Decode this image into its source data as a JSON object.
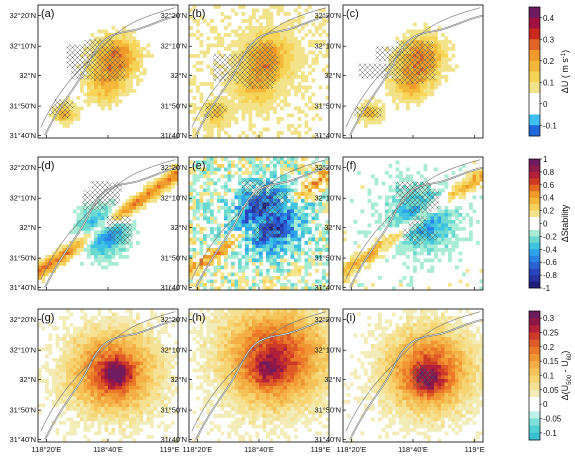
{
  "chart_data": {
    "type": "heatmap",
    "layout": "3x3 map panels with one colorbar per row",
    "x_ticks": [
      "118°20'E",
      "118°40'E",
      "119°E"
    ],
    "y_ticks": [
      "32°20'N",
      "32°10'N",
      "32°N",
      "31°50'N",
      "31°40'N"
    ],
    "rows": [
      {
        "panels": [
          "(a)",
          "(b)",
          "(c)"
        ],
        "colorbar": {
          "title_main": "ΔU",
          "title_unit": "( m s",
          "title_sup": "-1",
          "title_close": ")",
          "ticks": [
            "0.4",
            "0.3",
            "0.2",
            "0.1",
            "0",
            "-0.1"
          ],
          "levels": [
            0.45,
            0.4,
            0.35,
            0.3,
            0.25,
            0.2,
            0.15,
            0.1,
            0.05,
            0.0,
            -0.05,
            -0.1,
            -0.15
          ],
          "colors": [
            "#6d1b5e",
            "#a01040",
            "#c8281e",
            "#e06428",
            "#ef9a2a",
            "#f3b83a",
            "#f5d458",
            "#f2e38a",
            "#ffffff",
            "#ffffff",
            "#40c0f0",
            "#1f66d9",
            "#1a2c9f"
          ]
        }
      },
      {
        "panels": [
          "(d)",
          "(e)",
          "(f)"
        ],
        "colorbar": {
          "title_main": "ΔStability",
          "ticks": [
            "1",
            "0.8",
            "0.6",
            "0.4",
            "0.2",
            "0",
            "-0.2",
            "-0.4",
            "-0.6",
            "-0.8",
            "-1"
          ],
          "levels": [
            1.0,
            0.9,
            0.8,
            0.7,
            0.6,
            0.5,
            0.4,
            0.3,
            0.2,
            0.1,
            0.0,
            -0.1,
            -0.2,
            -0.3,
            -0.4,
            -0.5,
            -0.6,
            -0.7,
            -0.8,
            -0.9,
            -1.0
          ],
          "colors": [
            "#6d1b5e",
            "#8c1c4a",
            "#b3203a",
            "#cf3c26",
            "#e46a24",
            "#ef9a2a",
            "#f3b83a",
            "#f6d25a",
            "#f4e48e",
            "#ffffff",
            "#ffffff",
            "#a9ecd6",
            "#6bd9cf",
            "#3fc3e0",
            "#2ea4ea",
            "#2a82e2",
            "#2b62d4",
            "#2a44bf",
            "#26309f",
            "#1b1e78"
          ]
        }
      },
      {
        "panels": [
          "(g)",
          "(h)",
          "(i)"
        ],
        "colorbar": {
          "title_main": "Δ(U",
          "title_sub1": "500",
          "title_mid": " - U",
          "title_sub2": "60",
          "title_close": ")",
          "ticks": [
            "0.3",
            "0.25",
            "0.2",
            "0.15",
            "0.1",
            "0.05",
            "0",
            "-0.05",
            "-0.1"
          ],
          "levels": [
            0.325,
            0.3,
            0.275,
            0.25,
            0.225,
            0.2,
            0.175,
            0.15,
            0.125,
            0.1,
            0.075,
            0.05,
            0.025,
            0.0,
            -0.025,
            -0.05,
            -0.075,
            -0.1,
            -0.125
          ],
          "colors": [
            "#6d1b5e",
            "#8e1848",
            "#b3203a",
            "#cc3a28",
            "#de5a26",
            "#ea7a2a",
            "#f09634",
            "#f3ae45",
            "#f5c25a",
            "#f6d472",
            "#f5e194",
            "#f3ecb8",
            "#ffffff",
            "#ffffff",
            "#bff0ea",
            "#7fe0da",
            "#52d0d2",
            "#39bfcf"
          ]
        }
      }
    ],
    "grid": false,
    "legend": "right"
  }
}
